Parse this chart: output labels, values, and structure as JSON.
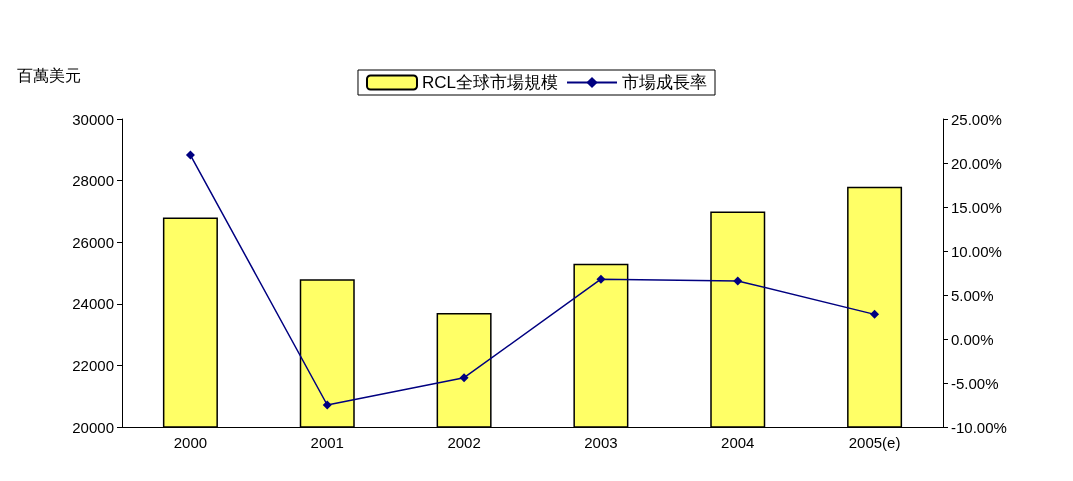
{
  "chart_data": {
    "type": "bar",
    "ylabel": "百萬美元",
    "categories": [
      "2000",
      "2001",
      "2002",
      "2003",
      "2004",
      "2005(e)"
    ],
    "series": [
      {
        "name": "RCL全球市場規模",
        "color": "#ffff66",
        "values": [
          26800,
          24800,
          23700,
          25300,
          27000,
          27800
        ]
      },
      {
        "name": "市場成長率",
        "type": "line",
        "axis": "y2",
        "color": "#000080",
        "marker": "diamond",
        "values": [
          20.9,
          -7.5,
          -4.4,
          6.8,
          6.6,
          2.8
        ]
      }
    ],
    "ylim": [
      20000,
      30000
    ],
    "yticks": [
      20000,
      22000,
      24000,
      26000,
      28000,
      30000
    ],
    "y2lim": [
      -10,
      25
    ],
    "y2ticks": [
      {
        "value": -10,
        "label": "-10.00%"
      },
      {
        "value": -5,
        "label": "-5.00%"
      },
      {
        "value": 0,
        "label": "0.00%"
      },
      {
        "value": 5,
        "label": "5.00%"
      },
      {
        "value": 10,
        "label": "10.00%"
      },
      {
        "value": 15,
        "label": "15.00%"
      },
      {
        "value": 20,
        "label": "20.00%"
      },
      {
        "value": 25,
        "label": "25.00%"
      }
    ],
    "grid": false,
    "legend": "top"
  }
}
